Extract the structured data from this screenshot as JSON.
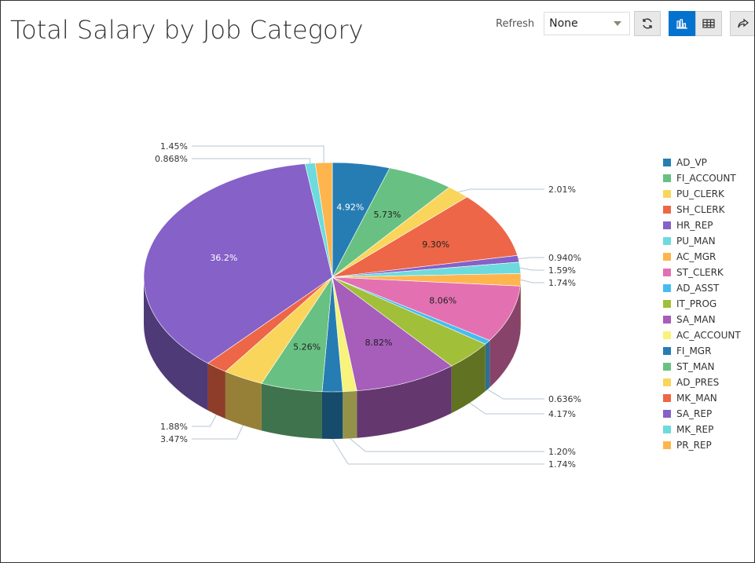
{
  "header": {
    "title": "Total Salary by Job Category"
  },
  "toolbar": {
    "refresh_label": "Refresh",
    "refresh_value": "None",
    "icons": [
      "refresh-icon",
      "bar-chart-icon",
      "table-icon",
      "share-icon"
    ],
    "active_view": "chart",
    "accent": "#0572ce"
  },
  "chart_data": {
    "type": "pie",
    "style": "3d",
    "title": "Total Salary by Job Category",
    "legend_position": "right",
    "categories": [
      "AD_VP",
      "FI_ACCOUNT",
      "PU_CLERK",
      "SH_CLERK",
      "HR_REP",
      "PU_MAN",
      "AC_MGR",
      "ST_CLERK",
      "AD_ASST",
      "IT_PROG",
      "SA_MAN",
      "AC_ACCOUNT",
      "FI_MGR",
      "ST_MAN",
      "AD_PRES",
      "MK_MAN",
      "SA_REP",
      "MK_REP",
      "PR_REP"
    ],
    "values": [
      4.92,
      5.73,
      2.01,
      9.3,
      0.94,
      1.59,
      1.74,
      8.06,
      0.636,
      4.17,
      8.82,
      1.2,
      1.74,
      5.26,
      3.47,
      1.88,
      36.2,
      0.868,
      1.45
    ],
    "labels": [
      "4.92%",
      "5.73%",
      "2.01%",
      "9.30%",
      "0.940%",
      "1.59%",
      "1.74%",
      "8.06%",
      "0.636%",
      "4.17%",
      "8.82%",
      "1.20%",
      "1.74%",
      "5.26%",
      "3.47%",
      "1.88%",
      "36.2%",
      "0.868%",
      "1.45%"
    ],
    "colors": [
      "#267db3",
      "#68c182",
      "#fad55c",
      "#ed6647",
      "#8561c8",
      "#6ddbdb",
      "#ffb54d",
      "#e371b2",
      "#47bdef",
      "#a2bf39",
      "#a75dba",
      "#f7f37b",
      "#267db3",
      "#68c182",
      "#fad55c",
      "#ed6647",
      "#8561c8",
      "#6ddbdb",
      "#ffb54d"
    ]
  }
}
